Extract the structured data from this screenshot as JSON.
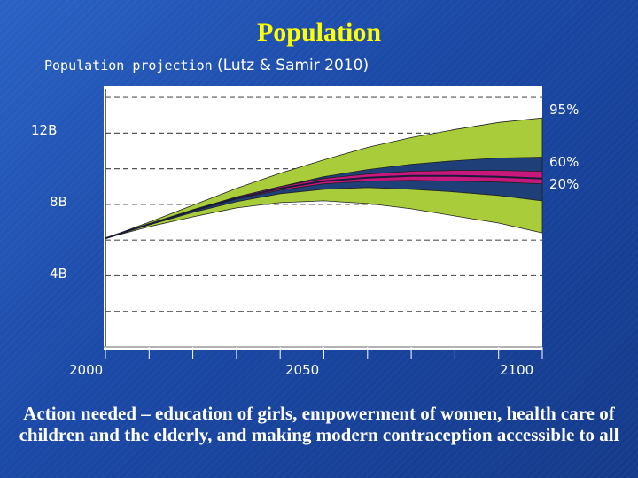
{
  "slide": {
    "title": "Population",
    "subtitle_source_label": "Population projection",
    "subtitle_citation": " (Lutz & Samir 2010)",
    "footer_text": "Action needed – education of girls, empowerment of women, health care of children and the elderly, and making modern contraception accessible to all"
  },
  "colors": {
    "title": "#ffff00",
    "band_95": "#a9cc3a",
    "band_60": "#1f3f78",
    "band_20": "#c8187c",
    "median": "#1a1a3a",
    "plot_bg": "#ffffff"
  },
  "chart_data": {
    "type": "area",
    "title": "Population projection (Lutz & Samir 2010)",
    "xlabel": "",
    "ylabel": "",
    "x_ticks": [
      "2000",
      "2050",
      "2100"
    ],
    "y_ticks": [
      "4B",
      "8B",
      "12B"
    ],
    "xlim": [
      2000,
      2100
    ],
    "ylim": [
      0,
      14.5
    ],
    "grid": true,
    "x": [
      2000,
      2010,
      2020,
      2030,
      2040,
      2050,
      2060,
      2070,
      2080,
      2090,
      2100
    ],
    "series": [
      {
        "name": "95%",
        "lower": [
          6.1,
          6.75,
          7.3,
          7.8,
          8.1,
          8.2,
          8.05,
          7.75,
          7.35,
          6.95,
          6.4
        ],
        "upper": [
          6.1,
          7.0,
          7.95,
          8.9,
          9.75,
          10.5,
          11.2,
          11.75,
          12.2,
          12.6,
          12.85
        ]
      },
      {
        "name": "60%",
        "lower": [
          6.1,
          6.85,
          7.55,
          8.15,
          8.6,
          8.85,
          8.95,
          8.85,
          8.7,
          8.5,
          8.2
        ],
        "upper": [
          6.1,
          6.9,
          7.7,
          8.4,
          9.0,
          9.55,
          9.95,
          10.25,
          10.45,
          10.6,
          10.65
        ]
      },
      {
        "name": "20%",
        "lower": [
          6.1,
          6.88,
          7.62,
          8.3,
          8.8,
          9.15,
          9.3,
          9.35,
          9.3,
          9.25,
          9.15
        ],
        "upper": [
          6.1,
          6.9,
          7.68,
          8.42,
          9.0,
          9.45,
          9.7,
          9.85,
          9.9,
          9.9,
          9.85
        ]
      }
    ],
    "median": [
      6.1,
      6.89,
      7.65,
      8.35,
      8.9,
      9.3,
      9.5,
      9.6,
      9.6,
      9.55,
      9.45
    ],
    "legend": [
      "95%",
      "60%",
      "20%"
    ],
    "legend_placement": "right"
  }
}
